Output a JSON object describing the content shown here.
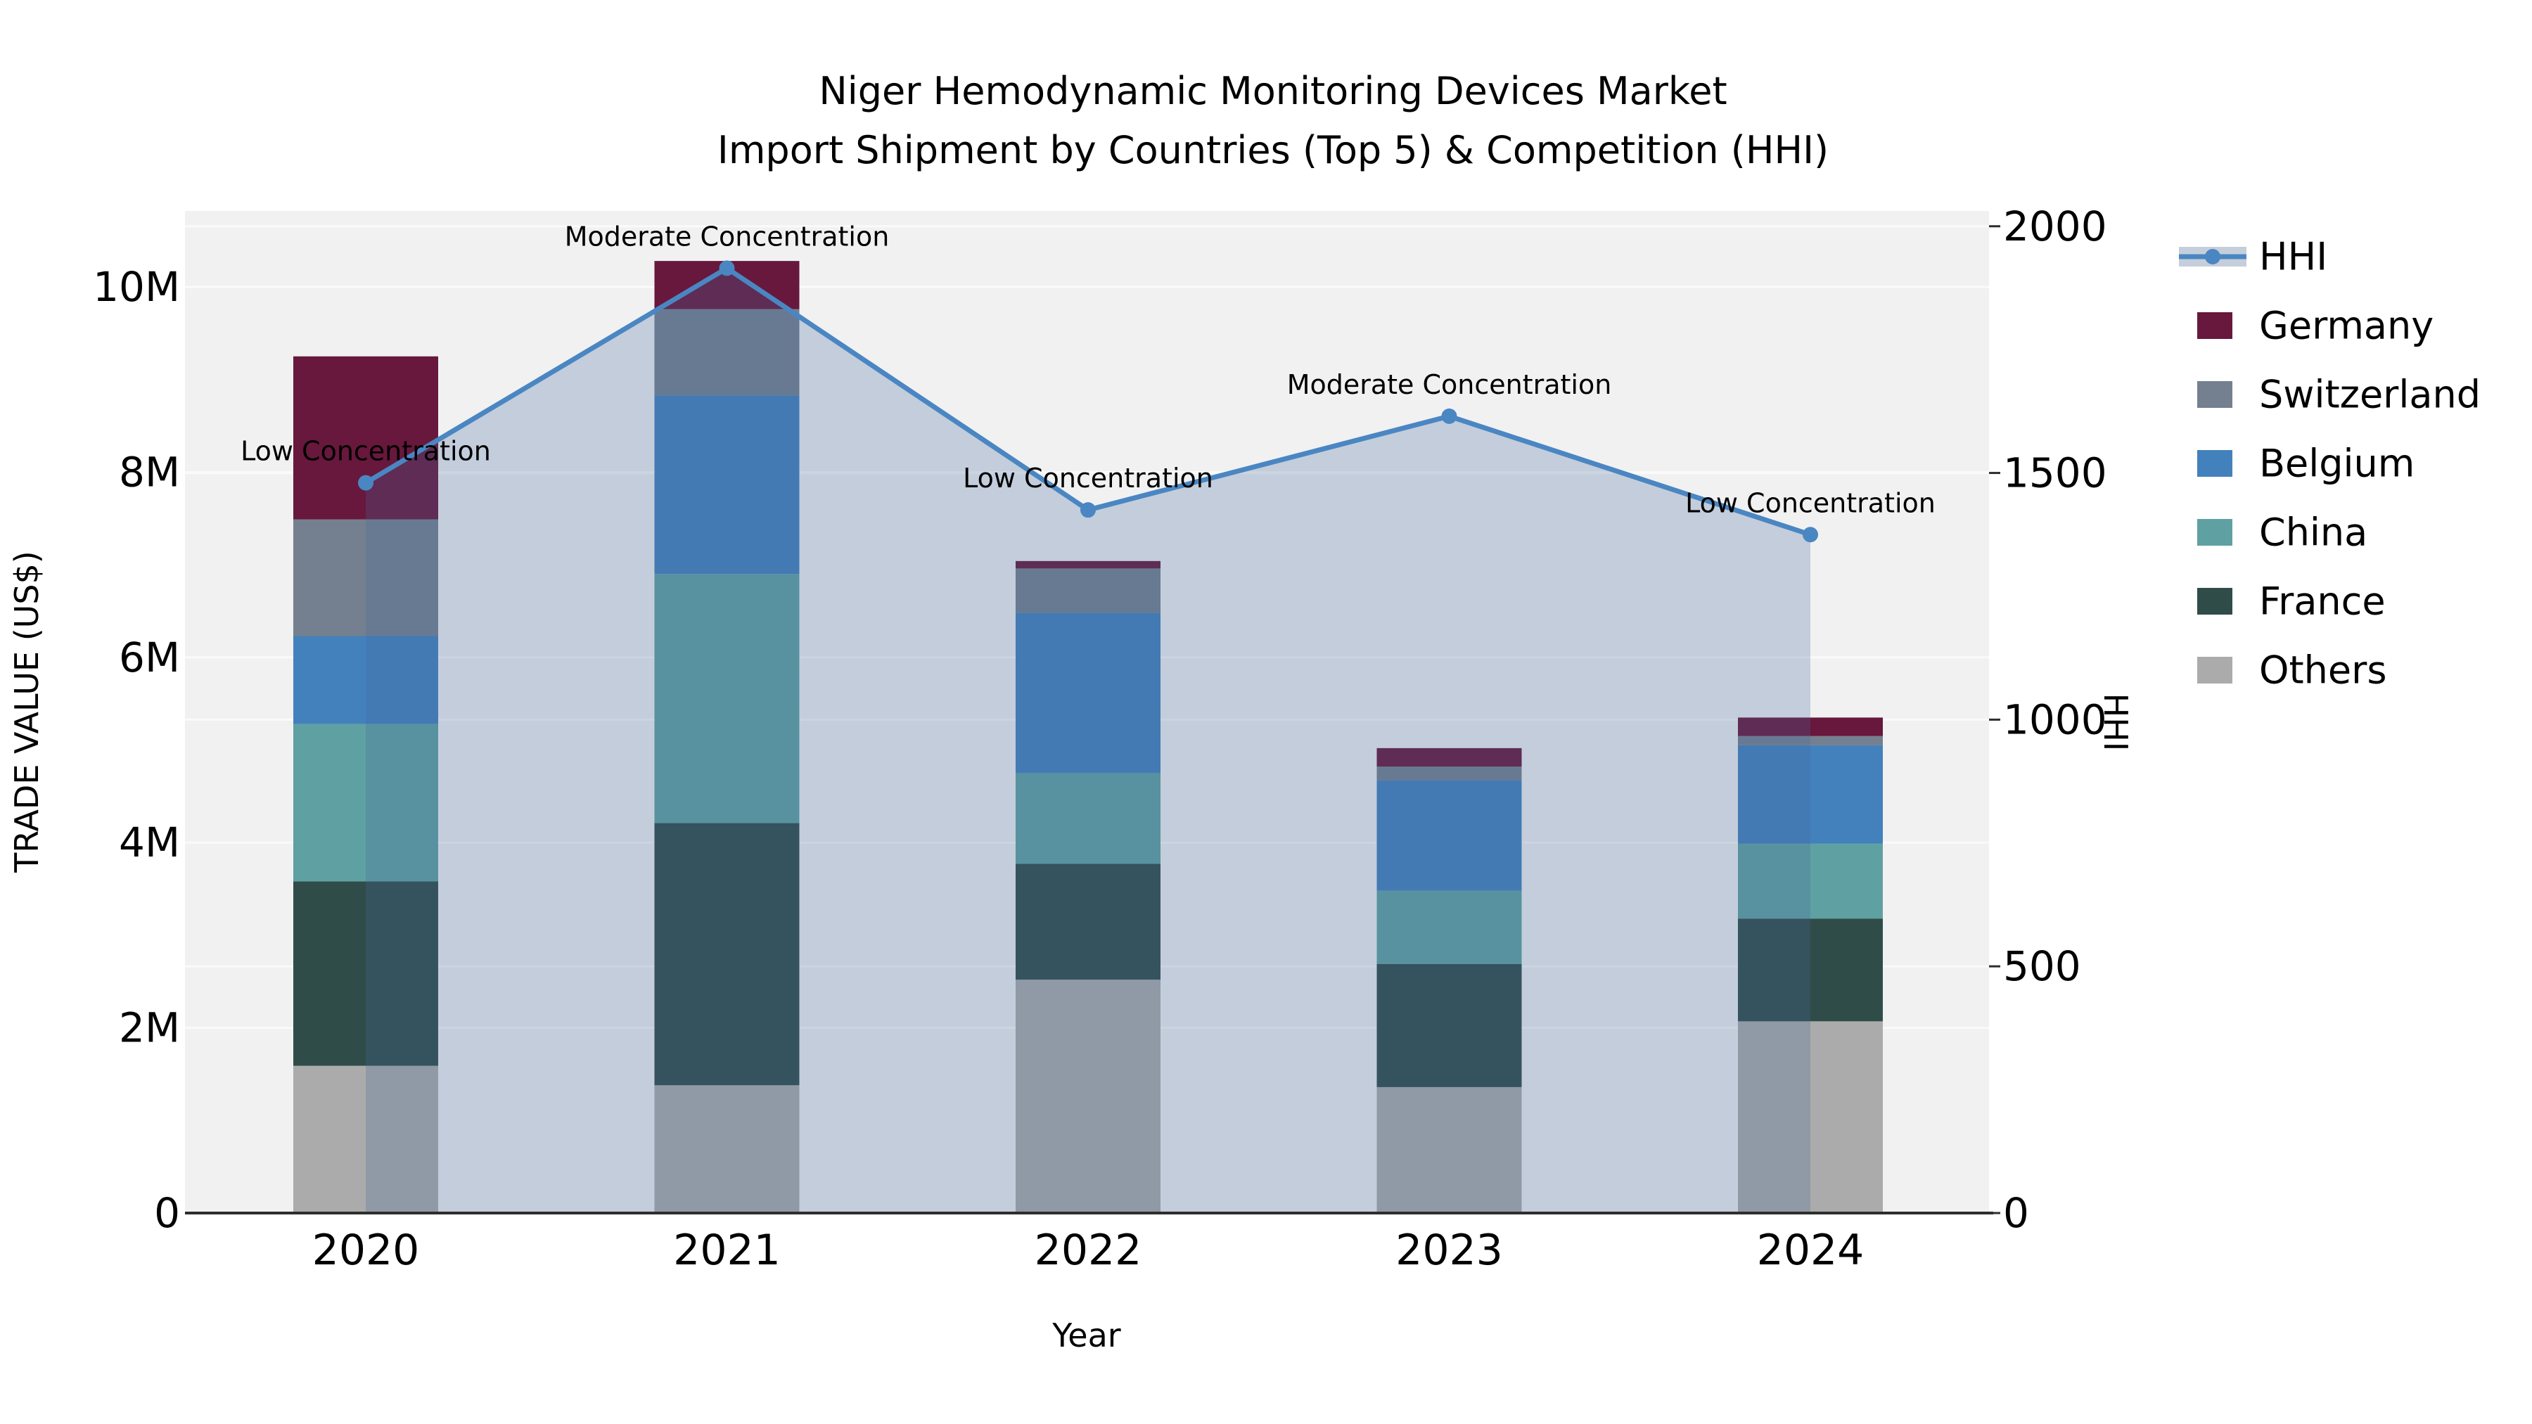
{
  "title": {
    "line1": "Niger Hemodynamic Monitoring Devices Market",
    "line2": "Import Shipment by Countries (Top 5) & Competition (HHI)"
  },
  "chart_data": {
    "type": "bar+line",
    "title": "Niger Hemodynamic Monitoring Devices Market\nImport Shipment by Countries (Top 5) & Competition (HHI)",
    "categories": [
      "2020",
      "2021",
      "2022",
      "2023",
      "2024"
    ],
    "unit": "US$ millions (left axis), HHI index (right axis)",
    "series": [
      {
        "name": "Germany",
        "color": "#67183C",
        "values": [
          1.76,
          0.52,
          0.08,
          0.2,
          0.2
        ]
      },
      {
        "name": "Switzerland",
        "color": "#74808F",
        "values": [
          1.26,
          0.93,
          0.48,
          0.15,
          0.1
        ]
      },
      {
        "name": "Belgium",
        "color": "#4381BC",
        "values": [
          0.95,
          1.93,
          1.73,
          1.19,
          1.06
        ]
      },
      {
        "name": "China",
        "color": "#5FA1A2",
        "values": [
          1.7,
          2.69,
          0.98,
          0.79,
          0.81
        ]
      },
      {
        "name": "France",
        "color": "#2F4C49",
        "values": [
          1.99,
          2.83,
          1.25,
          1.33,
          1.11
        ]
      },
      {
        "name": "Others",
        "color": "#ABABAB",
        "values": [
          1.59,
          1.38,
          2.52,
          1.36,
          2.07
        ]
      }
    ],
    "bar_totals": [
      9.25,
      10.28,
      7.04,
      5.02,
      5.35
    ],
    "stack_order_bottom_to_top": [
      "Others",
      "France",
      "China",
      "Belgium",
      "Switzerland",
      "Germany"
    ],
    "line_series": {
      "name": "HHI",
      "axis": "right",
      "color": "#4A86C2",
      "area_fill": "rgba(70,106,155,0.26)",
      "values": [
        1480,
        1915,
        1425,
        1615,
        1375
      ]
    },
    "annotations": [
      "Low Concentration",
      "Moderate Concentration",
      "Low Concentration",
      "Moderate Concentration",
      "Low Concentration"
    ],
    "x_axis": {
      "label": "Year"
    },
    "y_left": {
      "label": "TRADE VALUE (US$)",
      "ticks": [
        0,
        2,
        4,
        6,
        8,
        10
      ],
      "tick_labels": [
        "0",
        "2M",
        "4M",
        "6M",
        "8M",
        "10M"
      ],
      "range": [
        0,
        10.82
      ]
    },
    "y_right": {
      "label": "HHI",
      "ticks": [
        0,
        500,
        1000,
        1500,
        2000
      ],
      "tick_labels": [
        "0",
        "500",
        "1000",
        "1500",
        "2000"
      ],
      "range": [
        0,
        2031
      ]
    },
    "legend": {
      "position": "right",
      "items": [
        "HHI",
        "Germany",
        "Switzerland",
        "Belgium",
        "China",
        "France",
        "Others"
      ]
    },
    "grid": true,
    "background": {
      "paper": "#FFFFFF",
      "plot": "#F1F1F2",
      "gridline": "#FAFAFA",
      "axis_line": "#2E2E2E"
    }
  }
}
